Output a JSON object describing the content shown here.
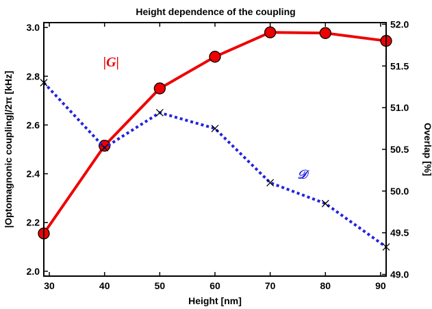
{
  "chart_data": {
    "type": "line",
    "title": "Height dependence of the coupling",
    "xlabel": "Height [nm]",
    "ylabel_left": "|Optomagnonic coupling|/2π [kHz]",
    "ylabel_right": "Overlap [%]",
    "xlim": [
      29,
      91
    ],
    "ylim_left": [
      1.98,
      3.02
    ],
    "ylim_right": [
      48.98,
      52.02
    ],
    "x_ticks": [
      30,
      40,
      50,
      60,
      70,
      80,
      90
    ],
    "y_ticks_left": [
      "2.0",
      "2.2",
      "2.4",
      "2.6",
      "2.8",
      "3.0"
    ],
    "y_ticks_right": [
      "49.0",
      "49.5",
      "50.0",
      "50.5",
      "51.0",
      "51.5",
      "52.0"
    ],
    "grid": false,
    "legend": "none",
    "series": [
      {
        "name": "|G|",
        "axis": "left",
        "style": "solid",
        "marker": "circle",
        "color": "#ee0000",
        "marker_color": "#ee0000",
        "x": [
          29,
          40,
          50,
          60,
          70,
          80,
          91
        ],
        "values": [
          2.155,
          2.515,
          2.75,
          2.88,
          2.98,
          2.977,
          2.945
        ]
      },
      {
        "name": "𝒟",
        "axis": "right",
        "style": "dotted",
        "marker": "x",
        "color": "#2222dd",
        "marker_color": "#000000",
        "x": [
          29,
          40,
          50,
          60,
          70,
          80,
          91
        ],
        "values": [
          51.3,
          50.52,
          50.94,
          50.75,
          50.1,
          49.85,
          49.33
        ]
      }
    ],
    "annotations": [
      {
        "text": "|G|",
        "color": "#ee0000",
        "at": [
          41.2,
          2.84
        ],
        "axis": "left"
      },
      {
        "text": "𝒟",
        "color": "#2222dd",
        "at": [
          75.8,
          2.38
        ],
        "axis": "left"
      }
    ]
  }
}
